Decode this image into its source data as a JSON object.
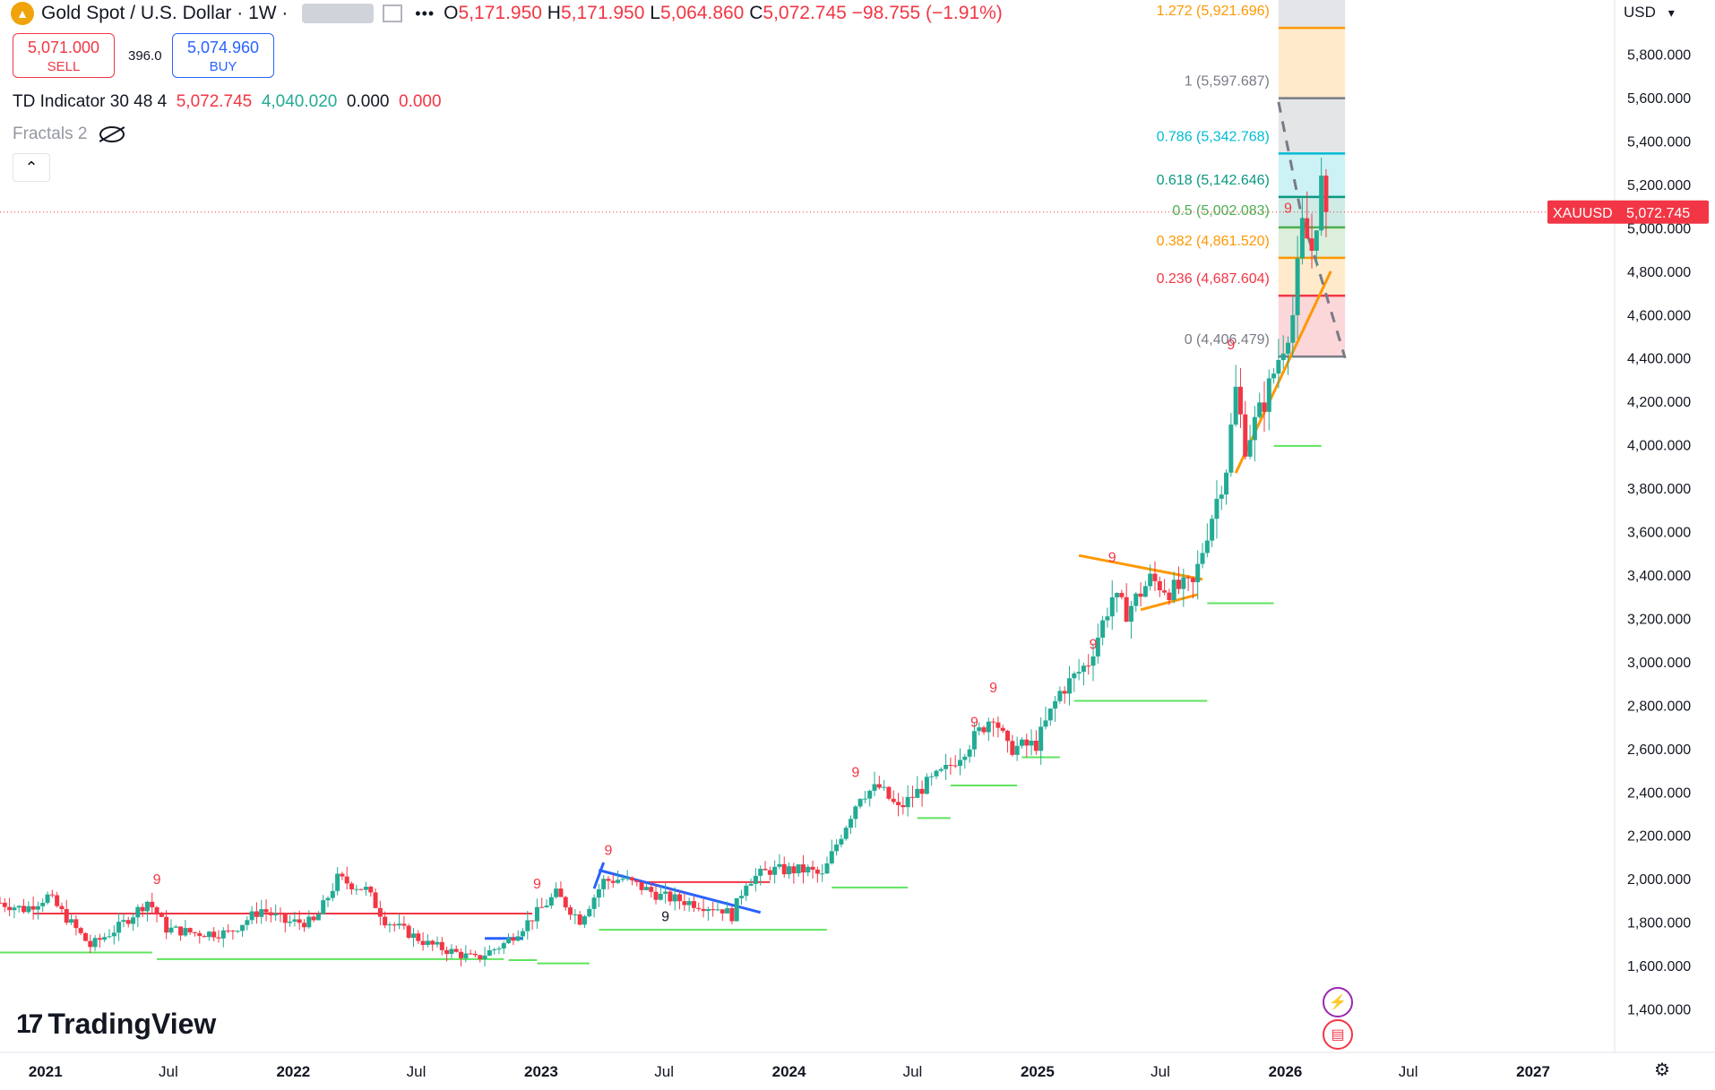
{
  "header": {
    "symbol": "Gold Spot / U.S. Dollar",
    "interval": "1W",
    "open": "5,171.950",
    "high": "5,171.950",
    "low": "5,064.860",
    "close": "5,072.745",
    "change": "−98.755 (−1.91%)",
    "labels": {
      "o": "O",
      "h": "H",
      "l": "L",
      "c": "C"
    }
  },
  "trade": {
    "sell_price": "5,071.000",
    "sell_label": "SELL",
    "spread": "396.0",
    "buy_price": "5,074.960",
    "buy_label": "BUY"
  },
  "indicators": {
    "td_name": "TD Indicator 30 48 4",
    "td_v1": "5,072.745",
    "td_v2": "4,040.020",
    "td_v3": "0.000",
    "td_v4": "0.000",
    "fractals": "Fractals 2"
  },
  "logo_text": "TradingView",
  "currency": "USD",
  "icons": [
    "eye-off-icon",
    "chevron-up-icon",
    "flash-icon",
    "us-flag-icon",
    "settings-icon",
    "tradingview-logo-icon"
  ],
  "colors": {
    "up": "#22ab94",
    "down": "#f23645",
    "accent": "#2962ff",
    "orange": "#ff9800",
    "green_line": "#6be36b",
    "red_line": "#f23645"
  },
  "chart_data": {
    "type": "candlestick",
    "series_name": "XAUUSD",
    "last_price": "5,072.745",
    "y_ticks": [
      1400,
      1600,
      1800,
      2000,
      2200,
      2400,
      2600,
      2800,
      3000,
      3200,
      3400,
      3600,
      3800,
      4000,
      4200,
      4400,
      4600,
      4800,
      5000,
      5200,
      5400,
      5600,
      5800
    ],
    "y_tick_labels": [
      "1,400.000",
      "1,600.000",
      "1,800.000",
      "2,000.000",
      "2,200.000",
      "2,400.000",
      "2,600.000",
      "2,800.000",
      "3,000.000",
      "3,200.000",
      "3,400.000",
      "3,600.000",
      "3,800.000",
      "4,000.000",
      "4,200.000",
      "4,400.000",
      "4,600.000",
      "4,800.000",
      "5,000.000",
      "5,200.000",
      "5,400.000",
      "5,600.000",
      "5,800.000"
    ],
    "ylim": [
      1200,
      6050
    ],
    "x_ticks": [
      {
        "date": "2021-01-01",
        "label": "2021"
      },
      {
        "date": "2021-07-01",
        "label": "Jul"
      },
      {
        "date": "2022-01-01",
        "label": "2022"
      },
      {
        "date": "2022-07-01",
        "label": "Jul"
      },
      {
        "date": "2023-01-01",
        "label": "2023"
      },
      {
        "date": "2023-07-01",
        "label": "Jul"
      },
      {
        "date": "2024-01-01",
        "label": "2024"
      },
      {
        "date": "2024-07-01",
        "label": "Jul"
      },
      {
        "date": "2025-01-01",
        "label": "2025"
      },
      {
        "date": "2025-07-01",
        "label": "Jul"
      },
      {
        "date": "2026-01-01",
        "label": "2026"
      },
      {
        "date": "2026-07-01",
        "label": "Jul"
      },
      {
        "date": "2027-01-01",
        "label": "2027"
      }
    ],
    "xlim": [
      "2020-10-26",
      "2027-05-01"
    ],
    "price_path": [
      [
        "2020-10-26",
        1890
      ],
      [
        "2020-12-01",
        1860
      ],
      [
        "2021-01-05",
        1920
      ],
      [
        "2021-03-08",
        1690
      ],
      [
        "2021-04-20",
        1780
      ],
      [
        "2021-06-01",
        1900
      ],
      [
        "2021-06-28",
        1770
      ],
      [
        "2021-08-09",
        1750
      ],
      [
        "2021-09-27",
        1750
      ],
      [
        "2021-11-15",
        1860
      ],
      [
        "2021-12-20",
        1800
      ],
      [
        "2022-02-01",
        1800
      ],
      [
        "2022-03-07",
        2000
      ],
      [
        "2022-04-18",
        1950
      ],
      [
        "2022-05-16",
        1810
      ],
      [
        "2022-07-18",
        1700
      ],
      [
        "2022-09-26",
        1630
      ],
      [
        "2022-11-07",
        1700
      ],
      [
        "2022-12-12",
        1800
      ],
      [
        "2023-01-23",
        1930
      ],
      [
        "2023-02-27",
        1810
      ],
      [
        "2023-04-03",
        1990
      ],
      [
        "2023-05-01",
        2000
      ],
      [
        "2023-06-26",
        1920
      ],
      [
        "2023-09-25",
        1860
      ],
      [
        "2023-10-09",
        1830
      ],
      [
        "2023-10-30",
        1990
      ],
      [
        "2023-12-04",
        2040
      ],
      [
        "2024-01-29",
        2040
      ],
      [
        "2024-02-19",
        2010
      ],
      [
        "2024-03-11",
        2160
      ],
      [
        "2024-04-15",
        2390
      ],
      [
        "2024-05-13",
        2420
      ],
      [
        "2024-06-10",
        2320
      ],
      [
        "2024-07-15",
        2420
      ],
      [
        "2024-08-19",
        2500
      ],
      [
        "2024-09-30",
        2650
      ],
      [
        "2024-10-28",
        2760
      ],
      [
        "2024-11-18",
        2600
      ],
      [
        "2024-12-30",
        2620
      ],
      [
        "2025-02-03",
        2860
      ],
      [
        "2025-03-17",
        3000
      ],
      [
        "2025-04-21",
        3300
      ],
      [
        "2025-05-12",
        3230
      ],
      [
        "2025-06-16",
        3380
      ],
      [
        "2025-07-14",
        3330
      ],
      [
        "2025-08-18",
        3350
      ],
      [
        "2025-09-08",
        3600
      ],
      [
        "2025-10-06",
        3900
      ],
      [
        "2025-10-20",
        4250
      ],
      [
        "2025-11-03",
        4000
      ],
      [
        "2025-12-01",
        4200
      ],
      [
        "2025-12-22",
        4400
      ],
      [
        "2026-01-12",
        4600
      ],
      [
        "2026-01-26",
        5000
      ],
      [
        "2026-02-09",
        4900
      ],
      [
        "2026-02-23",
        5200
      ],
      [
        "2026-03-02",
        5072
      ]
    ],
    "fibonacci": {
      "levels": [
        {
          "ratio": "1.272",
          "price": "5,921.696",
          "value": 5921.696,
          "color": "#ff9800"
        },
        {
          "ratio": "1",
          "price": "5,597.687",
          "value": 5597.687,
          "color": "#787b86"
        },
        {
          "ratio": "0.786",
          "price": "5,342.768",
          "value": 5342.768,
          "color": "#00bcd4"
        },
        {
          "ratio": "0.618",
          "price": "5,142.646",
          "value": 5142.646,
          "color": "#089981"
        },
        {
          "ratio": "0.5",
          "price": "5,002.083",
          "value": 5002.083,
          "color": "#4caf50"
        },
        {
          "ratio": "0.382",
          "price": "4,861.520",
          "value": 4861.52,
          "color": "#ff9800"
        },
        {
          "ratio": "0.236",
          "price": "4,687.604",
          "value": 4687.604,
          "color": "#f23645"
        },
        {
          "ratio": "0",
          "price": "4,406.479",
          "value": 4406.479,
          "color": "#787b86"
        }
      ],
      "start": "2025-12-22",
      "end": "2026-03-30"
    },
    "td_marks": [
      {
        "date": "2021-06-14",
        "value": 1975,
        "label": "9"
      },
      {
        "date": "2022-12-26",
        "value": 1955,
        "label": "9"
      },
      {
        "date": "2023-04-10",
        "value": 2110,
        "label": "9"
      },
      {
        "date": "2023-07-03",
        "value": 1805,
        "label": "9"
      },
      {
        "date": "2024-04-08",
        "value": 2470,
        "label": "9"
      },
      {
        "date": "2024-09-30",
        "value": 2700,
        "label": "9"
      },
      {
        "date": "2024-10-28",
        "value": 2860,
        "label": "9"
      },
      {
        "date": "2025-03-24",
        "value": 3060,
        "label": "9"
      },
      {
        "date": "2025-04-21",
        "value": 3460,
        "label": "9"
      },
      {
        "date": "2025-10-13",
        "value": 4440,
        "label": "9"
      },
      {
        "date": "2026-01-05",
        "value": 5070,
        "label": "9"
      }
    ],
    "support_lines": [
      {
        "start": "2020-10-26",
        "end": "2021-06-07",
        "value": 1660
      },
      {
        "start": "2021-06-14",
        "end": "2022-11-07",
        "value": 1630
      },
      {
        "start": "2022-11-14",
        "end": "2022-12-26",
        "value": 1625
      },
      {
        "start": "2022-12-26",
        "end": "2023-03-13",
        "value": 1610
      },
      {
        "start": "2023-03-27",
        "end": "2024-02-26",
        "value": 1765
      },
      {
        "start": "2024-03-04",
        "end": "2024-06-24",
        "value": 1960
      },
      {
        "start": "2024-07-08",
        "end": "2024-08-26",
        "value": 2280
      },
      {
        "start": "2024-08-26",
        "end": "2024-12-02",
        "value": 2430
      },
      {
        "start": "2024-12-09",
        "end": "2025-02-03",
        "value": 2560
      },
      {
        "start": "2025-02-24",
        "end": "2025-09-08",
        "value": 2820
      },
      {
        "start": "2025-09-08",
        "end": "2025-12-15",
        "value": 3270
      },
      {
        "start": "2025-12-15",
        "end": "2026-02-23",
        "value": 3995
      }
    ],
    "resistance_lines": [
      {
        "start": "2020-12-14",
        "end": "2022-12-19",
        "value": 1840
      },
      {
        "start": "2023-06-05",
        "end": "2023-12-04",
        "value": 1985
      }
    ],
    "trend_lines": [
      {
        "x1": "2023-03-27",
        "y1": 2040,
        "x2": "2023-11-20",
        "y2": 1845,
        "color": "#2962ff"
      },
      {
        "x1": "2023-03-20",
        "y1": 1955,
        "x2": "2023-04-03",
        "y2": 2075,
        "color": "#2962ff"
      },
      {
        "x1": "2022-10-10",
        "y1": 1725,
        "x2": "2022-12-05",
        "y2": 1725,
        "color": "#2962ff"
      },
      {
        "x1": "2025-03-03",
        "y1": 3490,
        "x2": "2025-09-01",
        "y2": 3380,
        "color": "#ff9800"
      },
      {
        "x1": "2025-06-02",
        "y1": 3240,
        "x2": "2025-08-25",
        "y2": 3310,
        "color": "#ff9800"
      },
      {
        "x1": "2025-10-20",
        "y1": 3870,
        "x2": "2026-03-09",
        "y2": 4800,
        "color": "#ff9800"
      }
    ],
    "dashed_path": [
      [
        "2025-12-22",
        5580
      ],
      [
        "2026-01-26",
        5040
      ],
      [
        "2026-02-16",
        4840
      ],
      [
        "2026-03-30",
        4400
      ]
    ]
  }
}
